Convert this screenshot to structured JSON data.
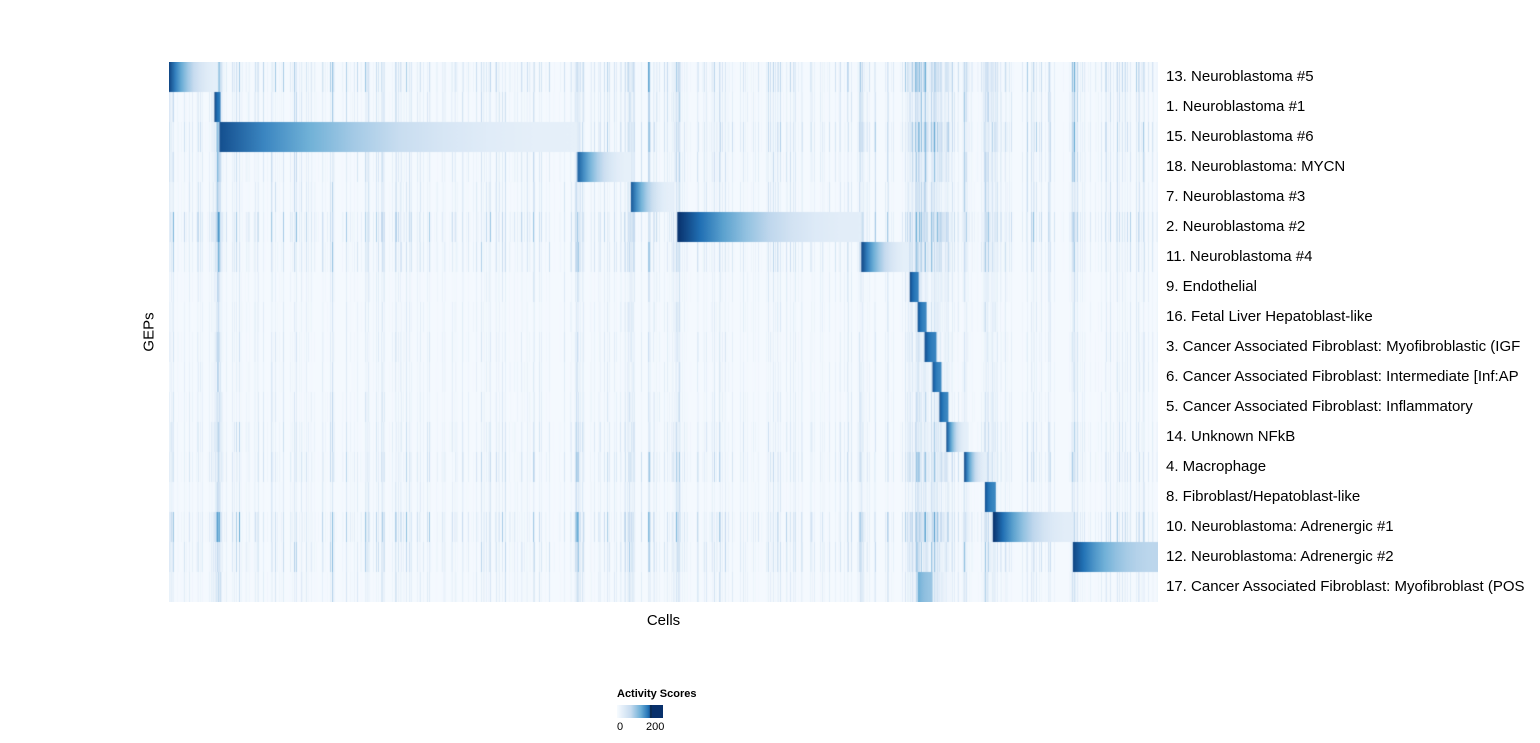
{
  "legend": {
    "title": "Activity Scores",
    "min_label": "0",
    "max_label": "200"
  },
  "chart_data": {
    "type": "heatmap",
    "title": "",
    "xlabel": "Cells",
    "ylabel": "GEPs",
    "value_range": [
      0,
      200
    ],
    "legend_title": "Activity Scores",
    "colormap": {
      "name": "Blues",
      "stops": [
        "#f7fbff",
        "#c6dbef",
        "#6baed6",
        "#2171b5",
        "#08306b"
      ]
    },
    "description": "Each row is a gene expression program (GEP); cells are ordered along x so each program's assigned cells form a dark-blue block fading to the right, producing a staircase diagonal. block values are fractional x-extents [start,end] of the high-activity cell group; peak is relative max activity (1.0 = ~200+).",
    "rows": [
      {
        "label": "13. Neuroblastoma #5",
        "block": [
          0.0,
          0.05
        ],
        "peak": 0.92,
        "noise": 1.2
      },
      {
        "label": "1. Neuroblastoma #1",
        "block": [
          0.046,
          0.052
        ],
        "peak": 0.95,
        "noise": 0.9
      },
      {
        "label": "15. Neuroblastoma #6",
        "block": [
          0.051,
          0.413
        ],
        "peak": 0.88,
        "noise": 1.2
      },
      {
        "label": "18. Neuroblastoma: MYCN",
        "block": [
          0.413,
          0.467
        ],
        "peak": 0.82,
        "noise": 0.9
      },
      {
        "label": "7. Neuroblastoma #3",
        "block": [
          0.467,
          0.51
        ],
        "peak": 0.85,
        "noise": 0.8
      },
      {
        "label": "2. Neuroblastoma #2",
        "block": [
          0.514,
          0.7
        ],
        "peak": 1.0,
        "noise": 1.4
      },
      {
        "label": "11. Neuroblastoma #4",
        "block": [
          0.7,
          0.748
        ],
        "peak": 0.92,
        "noise": 1.0
      },
      {
        "label": "9. Endothelial",
        "block": [
          0.749,
          0.758
        ],
        "peak": 0.92,
        "noise": 0.55
      },
      {
        "label": "16. Fetal Liver Hepatoblast-like",
        "block": [
          0.757,
          0.766
        ],
        "peak": 0.88,
        "noise": 0.55
      },
      {
        "label": "3. Cancer Associated Fibroblast: Myofibroblastic (IGF",
        "block": [
          0.764,
          0.776
        ],
        "peak": 0.9,
        "noise": 0.6
      },
      {
        "label": "6. Cancer Associated Fibroblast: Intermediate [Inf:AP",
        "block": [
          0.772,
          0.781
        ],
        "peak": 0.88,
        "noise": 0.55
      },
      {
        "label": "5. Cancer Associated Fibroblast: Inflammatory",
        "block": [
          0.779,
          0.788
        ],
        "peak": 0.88,
        "noise": 0.6
      },
      {
        "label": "14. Unknown NFkB",
        "block": [
          0.786,
          0.807
        ],
        "peak": 0.9,
        "noise": 0.8
      },
      {
        "label": "4. Macrophage",
        "block": [
          0.804,
          0.827
        ],
        "peak": 0.92,
        "noise": 1.0
      },
      {
        "label": "8. Fibroblast/Hepatoblast-like",
        "block": [
          0.825,
          0.836
        ],
        "peak": 0.88,
        "noise": 0.6
      },
      {
        "label": "10. Neuroblastoma: Adrenergic #1",
        "block": [
          0.833,
          0.915
        ],
        "peak": 1.0,
        "noise": 1.3
      },
      {
        "label": "12. Neuroblastoma: Adrenergic #2",
        "block": [
          0.914,
          1.0
        ],
        "peak": 0.92,
        "noise": 1.0,
        "fade": 0.3
      },
      {
        "label": "17. Cancer Associated Fibroblast: Myofibroblast (POS",
        "block": [
          0.757,
          0.772
        ],
        "peak": 0.5,
        "noise": 0.7
      }
    ]
  }
}
